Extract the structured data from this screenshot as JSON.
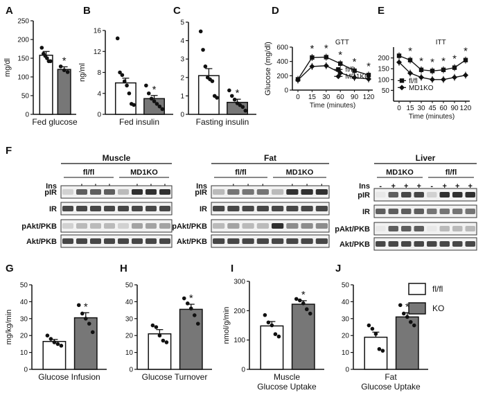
{
  "chart_data": [
    {
      "id": "A",
      "type": "bar",
      "letter": "A",
      "ylabel": "mg/dl",
      "xlabel": "Fed glucose",
      "ylim": [
        0,
        250
      ],
      "yticks": [
        0,
        50,
        100,
        150,
        200,
        250
      ],
      "bars": [
        {
          "group": "fl/fl",
          "value": 158,
          "sem": 10,
          "points": [
            178,
            162,
            156,
            150,
            142,
            142
          ]
        },
        {
          "group": "KO",
          "value": 120,
          "sem": 7,
          "points": [
            128,
            118,
            113
          ]
        }
      ],
      "sig": [
        1
      ]
    },
    {
      "id": "B",
      "type": "bar",
      "letter": "B",
      "ylabel": "ng/ml",
      "xlabel": "Fed insulin",
      "ylim": [
        0,
        16
      ],
      "yticks": [
        0,
        4,
        8,
        12,
        16
      ],
      "bars": [
        {
          "group": "fl/fl",
          "value": 6.0,
          "sem": 0.9,
          "points": [
            14.5,
            8.0,
            7.5,
            6.3,
            5.5,
            4.0,
            2.0,
            1.8
          ]
        },
        {
          "group": "KO",
          "value": 3.0,
          "sem": 0.6,
          "points": [
            5.5,
            4.0,
            3.0,
            2.5,
            2.0,
            1.5,
            1.0
          ]
        }
      ],
      "sig": [
        1
      ]
    },
    {
      "id": "C",
      "type": "bar",
      "letter": "C",
      "ylabel": "",
      "xlabel": "Fasting insulin",
      "ylim": [
        0,
        5
      ],
      "yticks": [
        0,
        1,
        2,
        3,
        4,
        5
      ],
      "bars": [
        {
          "group": "fl/fl",
          "value": 2.1,
          "sem": 0.38,
          "points": [
            4.5,
            3.5,
            2.6,
            2.0,
            1.9,
            1.8,
            1.0,
            0.9
          ]
        },
        {
          "group": "KO",
          "value": 0.65,
          "sem": 0.17,
          "points": [
            1.3,
            1.0,
            0.8,
            0.6,
            0.5,
            0.4,
            0.2
          ]
        }
      ],
      "sig": [
        1
      ]
    },
    {
      "id": "D",
      "type": "line",
      "letter": "D",
      "title": "GTT",
      "ylabel": "Glucose (mg/dl)",
      "xlabel": "Time (minutes)",
      "ylim": [
        0,
        600
      ],
      "yticks": [
        0,
        200,
        400,
        600
      ],
      "x": [
        0,
        15,
        30,
        60,
        90,
        120
      ],
      "series": [
        {
          "name": "fl/fl",
          "marker": "square",
          "values": [
            150,
            455,
            460,
            370,
            270,
            210
          ]
        },
        {
          "name": "MD1KO",
          "marker": "diamond",
          "values": [
            140,
            330,
            340,
            240,
            175,
            155
          ]
        }
      ],
      "sig_x": [
        15,
        30,
        60,
        90,
        120
      ],
      "legend": "bottom-right"
    },
    {
      "id": "E",
      "type": "line",
      "letter": "E",
      "title": "ITT",
      "ylabel": "",
      "xlabel": "Time (minutes)",
      "ylim": [
        0,
        250
      ],
      "yticks": [
        50,
        100,
        150,
        200
      ],
      "x": [
        0,
        15,
        30,
        45,
        60,
        90,
        120
      ],
      "series": [
        {
          "name": "fl/fl",
          "marker": "square",
          "values": [
            210,
            190,
            145,
            140,
            145,
            155,
            190
          ]
        },
        {
          "name": "MD1KO",
          "marker": "diamond",
          "values": [
            180,
            130,
            110,
            100,
            100,
            110,
            120
          ]
        }
      ],
      "sig_x": [
        15,
        30,
        45,
        60,
        90,
        120
      ],
      "legend": "bottom-left"
    },
    {
      "id": "G",
      "type": "bar",
      "letter": "G",
      "ylabel": "mg/kg/min",
      "xlabel": "Glucose Infusion",
      "ylim": [
        0,
        50
      ],
      "yticks": [
        0,
        10,
        20,
        30,
        40,
        50
      ],
      "bars": [
        {
          "group": "fl/fl",
          "value": 16.5,
          "sem": 1.2,
          "points": [
            20,
            18,
            16,
            15,
            14
          ]
        },
        {
          "group": "KO",
          "value": 30.5,
          "sem": 3,
          "points": [
            38,
            33,
            30,
            27,
            22
          ]
        }
      ],
      "sig": [
        1
      ]
    },
    {
      "id": "H",
      "type": "bar",
      "letter": "H",
      "ylabel": "",
      "xlabel": "Glucose Turnover",
      "ylim": [
        0,
        50
      ],
      "yticks": [
        0,
        10,
        20,
        30,
        40,
        50
      ],
      "bars": [
        {
          "group": "fl/fl",
          "value": 21,
          "sem": 2.5,
          "points": [
            26,
            25,
            20,
            17,
            16
          ]
        },
        {
          "group": "KO",
          "value": 35.5,
          "sem": 3,
          "points": [
            42,
            39,
            36,
            32,
            27
          ]
        }
      ],
      "sig": [
        1
      ]
    },
    {
      "id": "I",
      "type": "bar",
      "letter": "I",
      "ylabel": "nmol/g/min",
      "xlabel": "Muscle",
      "xlabel2": "Glucose Uptake",
      "ylim": [
        0,
        300
      ],
      "yticks": [
        0,
        100,
        200,
        300
      ],
      "bars": [
        {
          "group": "fl/fl",
          "value": 148,
          "sem": 15,
          "points": [
            185,
            160,
            150,
            120,
            112
          ]
        },
        {
          "group": "KO",
          "value": 222,
          "sem": 12,
          "points": [
            240,
            235,
            225,
            205,
            190
          ]
        }
      ],
      "sig": [
        1
      ]
    },
    {
      "id": "J",
      "type": "bar",
      "letter": "J",
      "ylabel": "",
      "xlabel": "Fat",
      "xlabel2": "Glucose Uptake",
      "ylim": [
        0,
        50
      ],
      "yticks": [
        0,
        10,
        20,
        30,
        40,
        50
      ],
      "bars": [
        {
          "group": "fl/fl",
          "value": 19,
          "sem": 3,
          "points": [
            26,
            24,
            21,
            12,
            11
          ]
        },
        {
          "group": "KO",
          "value": 31,
          "sem": 2.5,
          "points": [
            38,
            33,
            31,
            28,
            26
          ]
        }
      ],
      "sig": [
        1
      ]
    }
  ],
  "legend_bottom": {
    "items": [
      {
        "label": "fl/fl",
        "fill": "#ffffff"
      },
      {
        "label": "KO",
        "fill": "#777777"
      }
    ]
  },
  "blots": {
    "letter": "F",
    "ins_label": "Ins",
    "ins_states": [
      "-",
      "+",
      "+",
      "+",
      "-",
      "+",
      "+",
      "+"
    ],
    "rows": [
      "pIR",
      "IR",
      "pAkt/PKB",
      "Akt/PKB"
    ],
    "panels": [
      {
        "title": "Muscle",
        "groups": [
          "fl/fl",
          "MD1KO"
        ]
      },
      {
        "title": "Fat",
        "groups": [
          "fl/fl",
          "MD1KO"
        ]
      },
      {
        "title": "Liver",
        "groups": [
          "MD1KO",
          "fl/fl"
        ]
      }
    ]
  },
  "colors": {
    "ko_bar": "#777777",
    "wt_bar": "#ffffff",
    "ink": "#111111"
  },
  "star": "*"
}
